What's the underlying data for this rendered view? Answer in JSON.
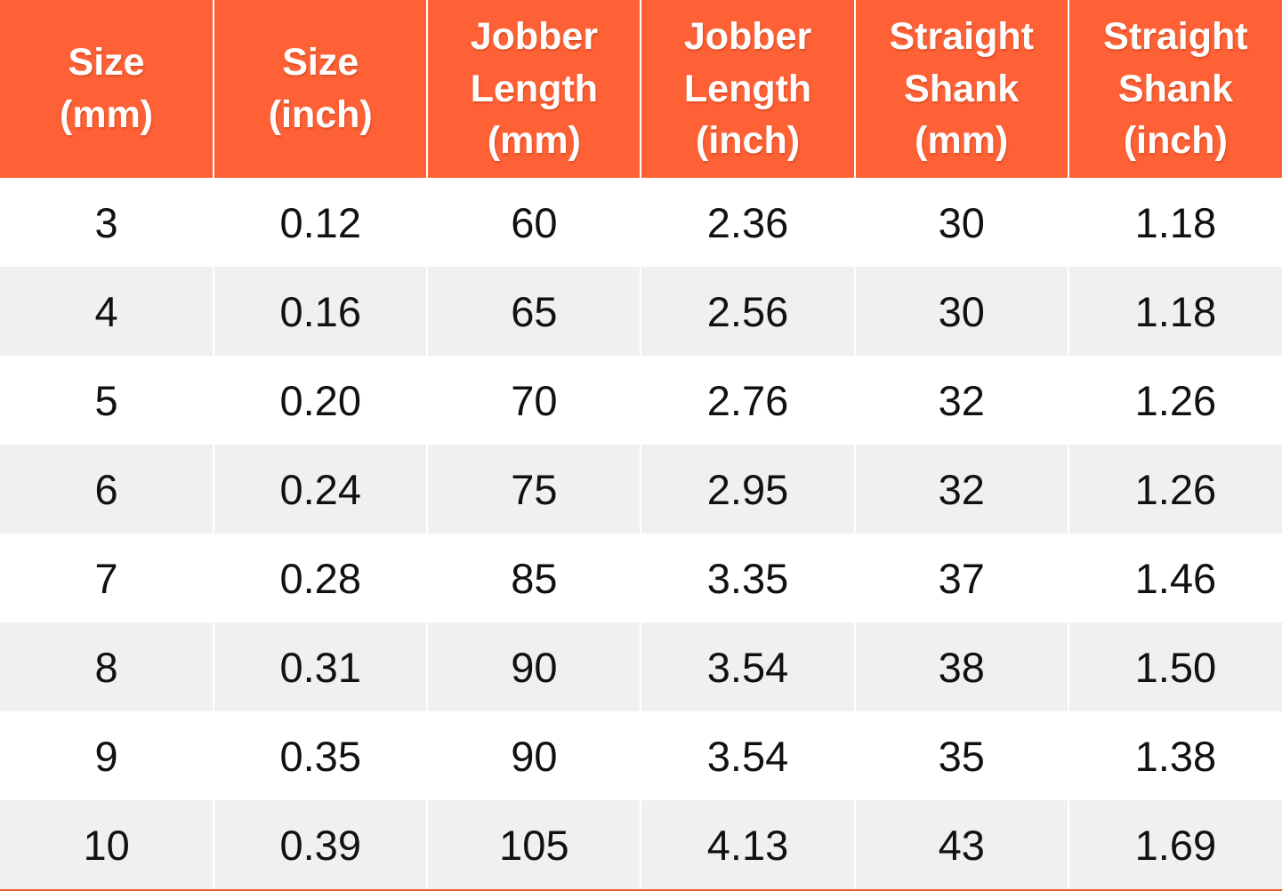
{
  "table": {
    "columns": [
      {
        "id": "size-mm",
        "label": "Size\n(mm)"
      },
      {
        "id": "size-inch",
        "label": "Size\n(inch)"
      },
      {
        "id": "jobber-length-mm",
        "label": "Jobber\nLength\n(mm)"
      },
      {
        "id": "jobber-length-inch",
        "label": "Jobber\nLength\n(inch)"
      },
      {
        "id": "straight-shank-mm",
        "label": "Straight\nShank\n(mm)"
      },
      {
        "id": "straight-shank-inch",
        "label": "Straight\nShank\n(inch)"
      }
    ],
    "rows": [
      [
        "3",
        "0.12",
        "60",
        "2.36",
        "30",
        "1.18"
      ],
      [
        "4",
        "0.16",
        "65",
        "2.56",
        "30",
        "1.18"
      ],
      [
        "5",
        "0.20",
        "70",
        "2.76",
        "32",
        "1.26"
      ],
      [
        "6",
        "0.24",
        "75",
        "2.95",
        "32",
        "1.26"
      ],
      [
        "7",
        "0.28",
        "85",
        "3.35",
        "37",
        "1.46"
      ],
      [
        "8",
        "0.31",
        "90",
        "3.54",
        "38",
        "1.50"
      ],
      [
        "9",
        "0.35",
        "90",
        "3.54",
        "35",
        "1.38"
      ],
      [
        "10",
        "0.39",
        "105",
        "4.13",
        "43",
        "1.69"
      ]
    ]
  },
  "chart_data": {
    "type": "table",
    "title": "",
    "columns": [
      "Size (mm)",
      "Size (inch)",
      "Jobber Length (mm)",
      "Jobber Length (inch)",
      "Straight Shank (mm)",
      "Straight Shank (inch)"
    ],
    "rows": [
      [
        3,
        0.12,
        60,
        2.36,
        30,
        1.18
      ],
      [
        4,
        0.16,
        65,
        2.56,
        30,
        1.18
      ],
      [
        5,
        0.2,
        70,
        2.76,
        32,
        1.26
      ],
      [
        6,
        0.24,
        75,
        2.95,
        32,
        1.26
      ],
      [
        7,
        0.28,
        85,
        3.35,
        37,
        1.46
      ],
      [
        8,
        0.31,
        90,
        3.54,
        38,
        1.5
      ],
      [
        9,
        0.35,
        90,
        3.54,
        35,
        1.38
      ],
      [
        10,
        0.39,
        105,
        4.13,
        43,
        1.69
      ]
    ]
  },
  "colors": {
    "header_bg": "#FF6136",
    "header_text": "#FFFFFF",
    "row_bg": "#FFFFFF",
    "row_alt_bg": "#F0F0F0",
    "divider": "#FFFFFF",
    "text": "#111111",
    "accent_border": "#F15A2B"
  }
}
